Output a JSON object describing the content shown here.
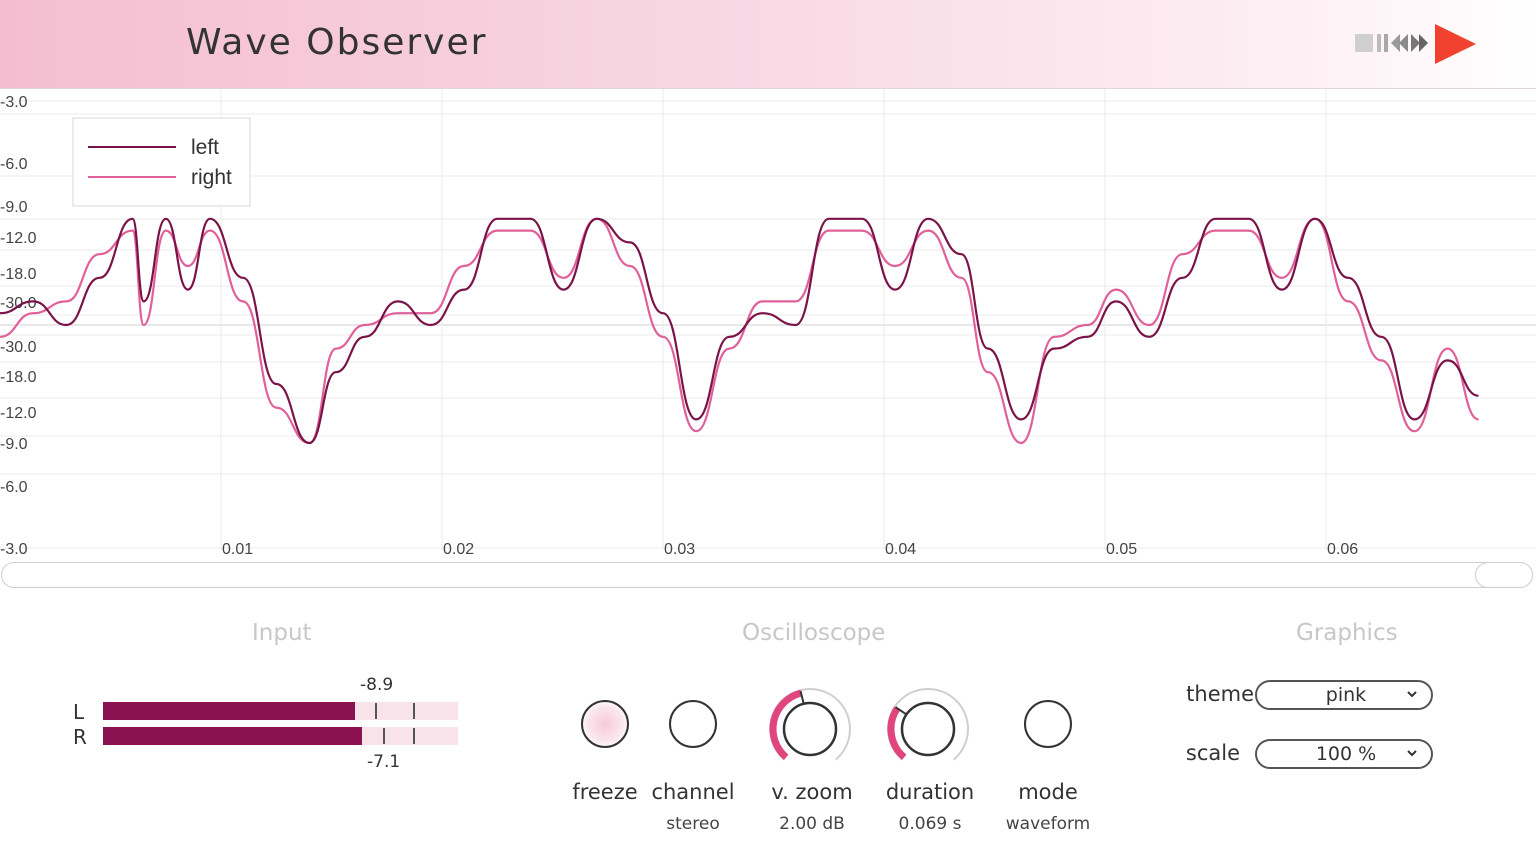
{
  "app": {
    "title": "Wave Observer"
  },
  "colors": {
    "accent": "#e0457e",
    "left_trace": "#7a1448",
    "right_trace": "#e0609a",
    "meter_fill": "#8b1150",
    "meter_track": "#f9e3ea",
    "logo_red": "#f0422e"
  },
  "scope": {
    "legend": [
      {
        "label": "left"
      },
      {
        "label": "right"
      }
    ],
    "y_labels": [
      "-3.0",
      "-6.0",
      "-9.0",
      "-12.0",
      "-18.0",
      "-30.0",
      "-30.0",
      "-18.0",
      "-12.0",
      "-9.0",
      "-6.0",
      "-3.0"
    ],
    "x_labels": [
      "0.01",
      "0.02",
      "0.03",
      "0.04",
      "0.05",
      "0.06"
    ]
  },
  "sections": {
    "input": "Input",
    "oscilloscope": "Oscilloscope",
    "graphics": "Graphics"
  },
  "input": {
    "left_letter": "L",
    "right_letter": "R",
    "left_level_fraction": 0.71,
    "right_level_fraction": 0.73,
    "left_peak": "-8.9",
    "right_peak": "-7.1"
  },
  "controls": {
    "freeze": {
      "label": "freeze"
    },
    "channel": {
      "label": "channel",
      "value": "stereo"
    },
    "vzoom": {
      "label": "v. zoom",
      "value": "2.00 dB",
      "fraction": 0.45
    },
    "duration": {
      "label": "duration",
      "value": "0.069 s",
      "fraction": 0.3
    },
    "mode": {
      "label": "mode",
      "value": "waveform"
    }
  },
  "graphics": {
    "theme_label": "theme",
    "theme_value": "pink",
    "scale_label": "scale",
    "scale_value": "100 %"
  },
  "chart_data": {
    "type": "line",
    "x": [
      0.0,
      0.0015,
      0.003,
      0.0045,
      0.006,
      0.0065,
      0.0075,
      0.0085,
      0.0095,
      0.011,
      0.0125,
      0.014,
      0.0152,
      0.0165,
      0.018,
      0.0195,
      0.021,
      0.0225,
      0.024,
      0.0255,
      0.027,
      0.0285,
      0.03,
      0.0315,
      0.033,
      0.0345,
      0.036,
      0.0375,
      0.039,
      0.0405,
      0.042,
      0.0435,
      0.0447,
      0.0462,
      0.0477,
      0.0492,
      0.0505,
      0.052,
      0.0535,
      0.055,
      0.0565,
      0.058,
      0.0595,
      0.061,
      0.0625,
      0.064,
      0.0655,
      0.0669
    ],
    "x_ticks": [
      0.01,
      0.02,
      0.03,
      0.04,
      0.05,
      0.06
    ],
    "series": [
      {
        "name": "left",
        "values": [
          0.1,
          0.2,
          0.0,
          0.4,
          0.9,
          0.2,
          0.9,
          0.3,
          0.9,
          0.4,
          -0.5,
          -1.0,
          -0.4,
          -0.1,
          0.2,
          0.0,
          0.3,
          0.9,
          0.9,
          0.3,
          0.9,
          0.7,
          0.1,
          -0.8,
          -0.1,
          0.1,
          0.0,
          0.9,
          0.9,
          0.3,
          0.9,
          0.6,
          -0.2,
          -0.8,
          -0.2,
          -0.1,
          0.2,
          -0.1,
          0.4,
          0.9,
          0.9,
          0.3,
          0.9,
          0.4,
          -0.1,
          -0.8,
          -0.3,
          -0.6
        ]
      },
      {
        "name": "right",
        "values": [
          -0.1,
          0.1,
          0.2,
          0.6,
          0.8,
          0.0,
          0.8,
          0.5,
          0.8,
          0.2,
          -0.7,
          -1.0,
          -0.2,
          0.0,
          0.1,
          0.1,
          0.5,
          0.8,
          0.8,
          0.4,
          0.9,
          0.5,
          -0.1,
          -0.9,
          -0.2,
          0.2,
          0.2,
          0.8,
          0.8,
          0.5,
          0.8,
          0.4,
          -0.4,
          -1.0,
          -0.1,
          0.0,
          0.3,
          0.0,
          0.6,
          0.8,
          0.8,
          0.4,
          0.9,
          0.2,
          -0.3,
          -0.9,
          -0.2,
          -0.8
        ]
      }
    ],
    "grid": true,
    "legend_position": "top-left"
  }
}
